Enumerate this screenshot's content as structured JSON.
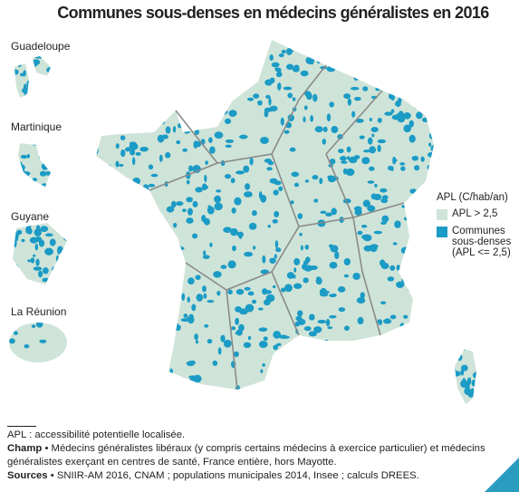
{
  "title": "Communes sous-denses en médecins généralistes en 2016",
  "insets": [
    {
      "label": "Guadeloupe"
    },
    {
      "label": "Martinique"
    },
    {
      "label": "Guyane"
    },
    {
      "label": "La Réunion"
    }
  ],
  "legend": {
    "title": "APL (C/hab/an)",
    "items": [
      {
        "label": "APL > 2,5",
        "color": "#cfe4d8"
      },
      {
        "label": "Communes sous-denses (APL <= 2,5)",
        "color": "#1b9bc5"
      }
    ]
  },
  "notes": {
    "apl": "APL : accessibilité potentielle localisée.",
    "champ": {
      "label": "Champ",
      "text": "• Médecins généralistes libéraux (y compris certains médecins à exercice particulier) et médecins généralistes exerçant en centres de santé, France entière, hors Mayotte."
    },
    "sources": {
      "label": "Sources",
      "text": "• SNIIR-AM 2016, CNAM ; populations municipales 2014, Insee ; calculs DREES."
    }
  }
}
